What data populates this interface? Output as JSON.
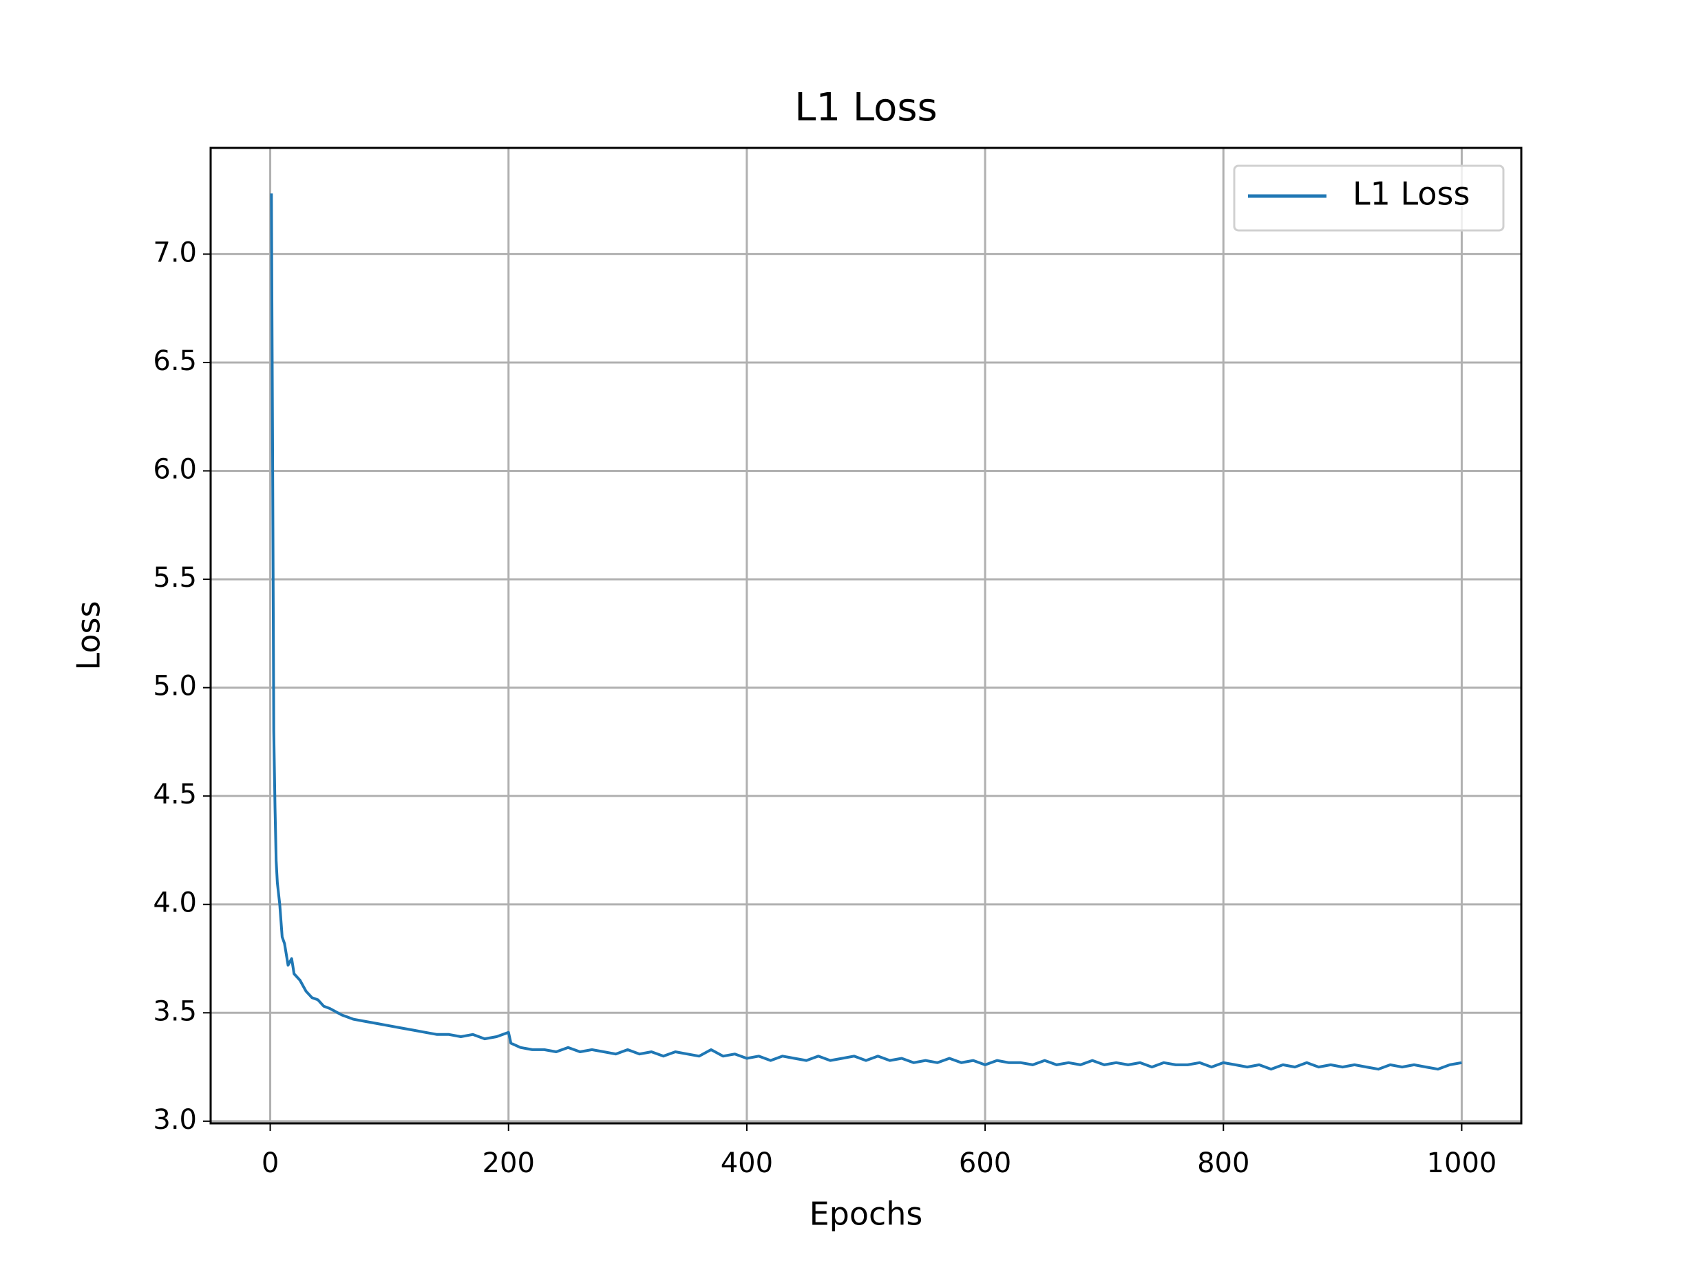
{
  "chart_data": {
    "type": "line",
    "title": "L1 Loss",
    "x_label": "Epochs",
    "y_label": "Loss",
    "x": [
      1,
      2,
      3,
      4,
      5,
      6,
      8,
      10,
      12,
      15,
      18,
      20,
      25,
      30,
      35,
      40,
      45,
      50,
      60,
      70,
      80,
      90,
      100,
      110,
      120,
      130,
      140,
      150,
      160,
      170,
      180,
      190,
      200,
      202,
      210,
      220,
      230,
      240,
      250,
      260,
      270,
      280,
      290,
      300,
      310,
      320,
      330,
      340,
      350,
      360,
      370,
      380,
      390,
      400,
      410,
      420,
      430,
      440,
      450,
      460,
      470,
      480,
      490,
      500,
      510,
      520,
      530,
      540,
      550,
      560,
      570,
      580,
      590,
      600,
      610,
      620,
      630,
      640,
      650,
      660,
      670,
      680,
      690,
      700,
      710,
      720,
      730,
      740,
      750,
      760,
      770,
      780,
      790,
      800,
      810,
      820,
      830,
      840,
      850,
      860,
      870,
      880,
      890,
      900,
      910,
      920,
      930,
      940,
      950,
      960,
      970,
      980,
      990,
      1000
    ],
    "series": [
      {
        "name": "L1 Loss",
        "color": "#1f77b4",
        "values": [
          7.28,
          6.1,
          4.8,
          4.45,
          4.2,
          4.1,
          4.0,
          3.85,
          3.82,
          3.72,
          3.75,
          3.68,
          3.65,
          3.6,
          3.57,
          3.56,
          3.53,
          3.52,
          3.49,
          3.47,
          3.46,
          3.45,
          3.44,
          3.43,
          3.42,
          3.41,
          3.4,
          3.4,
          3.39,
          3.4,
          3.38,
          3.39,
          3.41,
          3.36,
          3.34,
          3.33,
          3.33,
          3.32,
          3.34,
          3.32,
          3.33,
          3.32,
          3.31,
          3.33,
          3.31,
          3.32,
          3.3,
          3.32,
          3.31,
          3.3,
          3.33,
          3.3,
          3.31,
          3.29,
          3.3,
          3.28,
          3.3,
          3.29,
          3.28,
          3.3,
          3.28,
          3.29,
          3.3,
          3.28,
          3.3,
          3.28,
          3.29,
          3.27,
          3.28,
          3.27,
          3.29,
          3.27,
          3.28,
          3.26,
          3.28,
          3.27,
          3.27,
          3.26,
          3.28,
          3.26,
          3.27,
          3.26,
          3.28,
          3.26,
          3.27,
          3.26,
          3.27,
          3.25,
          3.27,
          3.26,
          3.26,
          3.27,
          3.25,
          3.27,
          3.26,
          3.25,
          3.26,
          3.24,
          3.26,
          3.25,
          3.27,
          3.25,
          3.26,
          3.25,
          3.26,
          3.25,
          3.24,
          3.26,
          3.25,
          3.26,
          3.25,
          3.24,
          3.26,
          3.27
        ]
      }
    ],
    "xlim": [
      -50,
      1050
    ],
    "ylim": [
      2.99,
      7.49
    ],
    "xticks": [
      0,
      200,
      400,
      600,
      800,
      1000
    ],
    "yticks": [
      {
        "value": 3.0,
        "label": "3.0"
      },
      3.5,
      {
        "value": 4.0,
        "label": "4.0"
      },
      4.5,
      {
        "value": 5.0,
        "label": "5.0"
      },
      5.5,
      {
        "value": 6.0,
        "label": "6.0"
      },
      6.5,
      {
        "value": 7.0,
        "label": "7.0"
      }
    ],
    "grid": true,
    "legend": "upper right"
  }
}
